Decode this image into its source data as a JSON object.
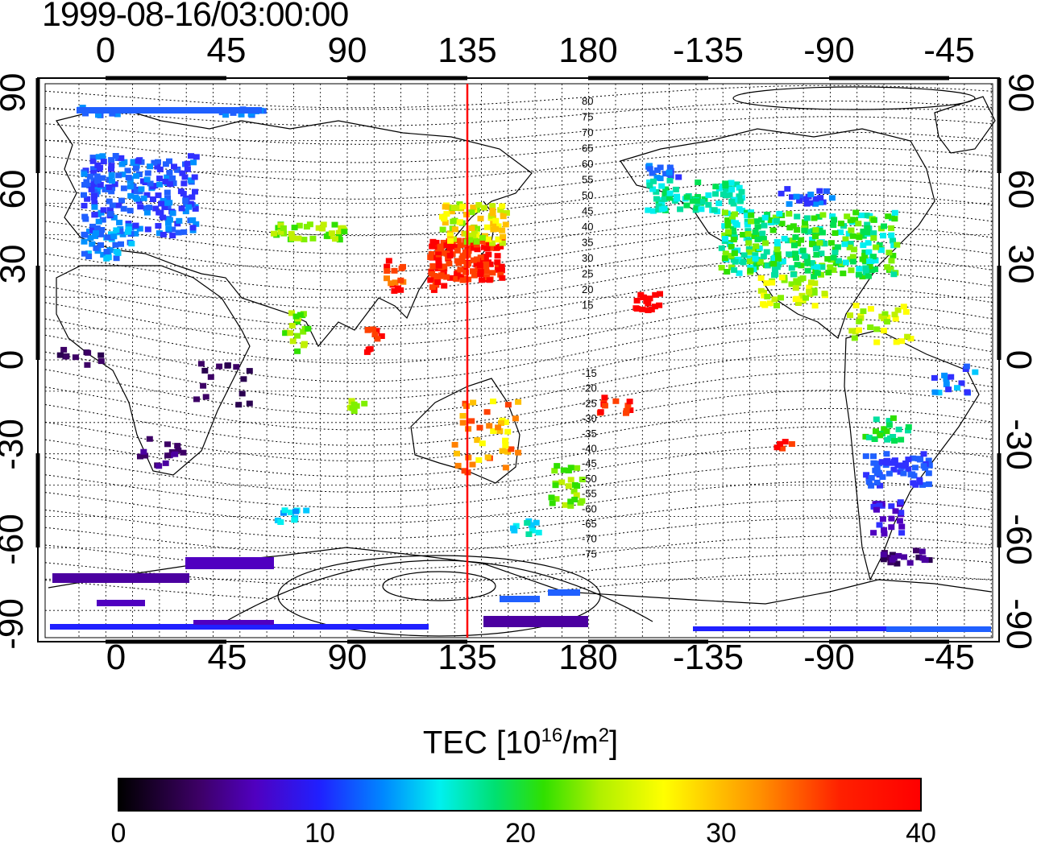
{
  "title": "1999-08-16/03:00:00",
  "axes": {
    "x_ticks": [
      "0",
      "45",
      "90",
      "135",
      "180",
      "-135",
      "-90",
      "-45"
    ],
    "y_ticks_left": [
      "90",
      "60",
      "30",
      "0",
      "-30",
      "-60",
      "-90"
    ],
    "y_ticks_right": [
      "90",
      "60",
      "30",
      "0",
      "-30",
      "-60",
      "-90"
    ]
  },
  "magnetic_latitude_labels": {
    "north": [
      "80",
      "75",
      "70",
      "65",
      "60",
      "55",
      "50",
      "45",
      "40",
      "35",
      "30",
      "25",
      "20",
      "15"
    ],
    "south": [
      "-15",
      "-20",
      "-25",
      "-30",
      "-35",
      "-40",
      "-45",
      "-50",
      "-55",
      "-60",
      "-65",
      "-70",
      "-75"
    ]
  },
  "colorbar": {
    "title_main": "TEC  [10",
    "title_exp": "16",
    "title_unit": "/m",
    "title_exp2": "2",
    "title_close": "]",
    "ticks": [
      "0",
      "10",
      "20",
      "30",
      "40"
    ],
    "range": [
      0,
      40
    ]
  },
  "marker_longitude": 135,
  "colors": {
    "marker": "#ff0000",
    "grid": "#000000"
  }
}
